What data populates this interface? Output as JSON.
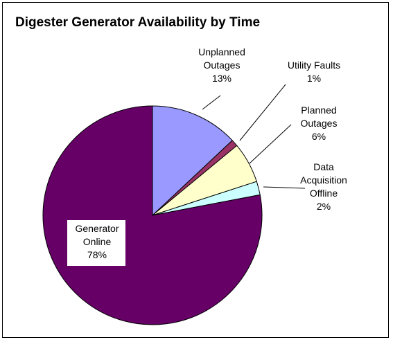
{
  "chart_data": {
    "type": "pie",
    "title": "Digester Generator Availability by Time",
    "slices": [
      {
        "label_lines": [
          "Unplanned",
          "Outages"
        ],
        "pct_label": "13%",
        "value": 13,
        "color": "#9999FF"
      },
      {
        "label_lines": [
          "Utility Faults"
        ],
        "pct_label": "1%",
        "value": 1,
        "color": "#993366"
      },
      {
        "label_lines": [
          "Planned",
          "Outages"
        ],
        "pct_label": "6%",
        "value": 6,
        "color": "#FFFFCC"
      },
      {
        "label_lines": [
          "Data",
          "Acquisition",
          "Offline"
        ],
        "pct_label": "2%",
        "value": 2,
        "color": "#CCFFFF"
      },
      {
        "label_lines": [
          "Generator",
          "Online"
        ],
        "pct_label": "78%",
        "value": 78,
        "color": "#660066"
      }
    ],
    "start_angle": "12 o'clock, clockwise",
    "legend": "none"
  }
}
